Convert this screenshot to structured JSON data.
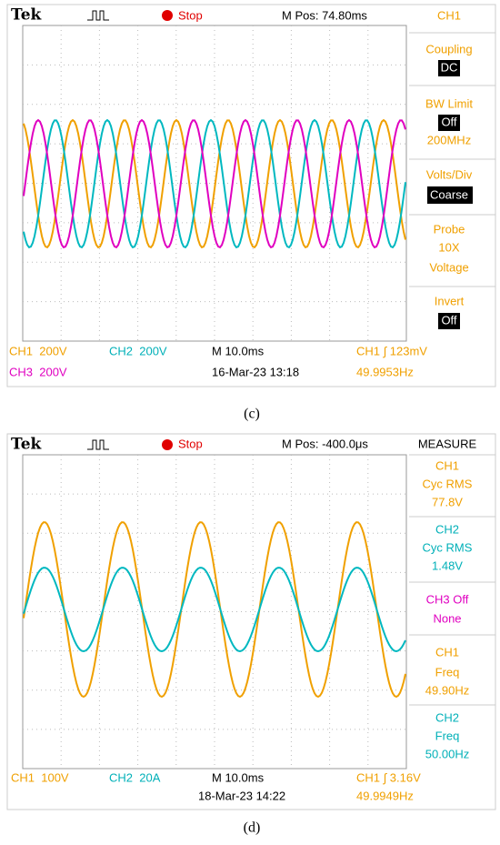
{
  "panels": [
    {
      "header": {
        "brand": "Tek",
        "status": "Stop",
        "position": "M Pos: 74.80ms",
        "menu_title": "CH1"
      },
      "menu": [
        [
          "Coupling",
          "DC"
        ],
        [
          "BW Limit",
          "Off",
          "200MHz"
        ],
        [
          "Volts/Div",
          "Coarse"
        ],
        [
          "Probe",
          "10X",
          "Voltage"
        ],
        [
          "Invert",
          "Off"
        ]
      ],
      "footer": {
        "ch1": "CH1  200V",
        "ch2": "CH2  200V",
        "timebase": "M 10.0ms",
        "trigger": "CH1 ∫ 123mV",
        "ch3": "CH3  200V",
        "date": "16-Mar-23 13:18",
        "freq": "49.9953Hz"
      },
      "caption": "(c)"
    },
    {
      "header": {
        "brand": "Tek",
        "status": "Stop",
        "position": "M Pos: -400.0μs",
        "menu_title": "MEASURE"
      },
      "menu": [
        [
          "CH1",
          "Cyc RMS",
          "77.8V"
        ],
        [
          "CH2",
          "Cyc RMS",
          "1.48V"
        ],
        [
          "CH3 Off",
          "None"
        ],
        [
          "CH1",
          "Freq",
          "49.90Hz"
        ],
        [
          "CH2",
          "Freq",
          "50.00Hz"
        ]
      ],
      "footer": {
        "ch1": "CH1  100V",
        "ch2": "CH2  20A",
        "timebase": "M 10.0ms",
        "trigger": "CH1 ∫ 3.16V",
        "date": "18-Mar-23 14:22",
        "freq": "49.9949Hz"
      },
      "caption": "(d)"
    }
  ]
}
